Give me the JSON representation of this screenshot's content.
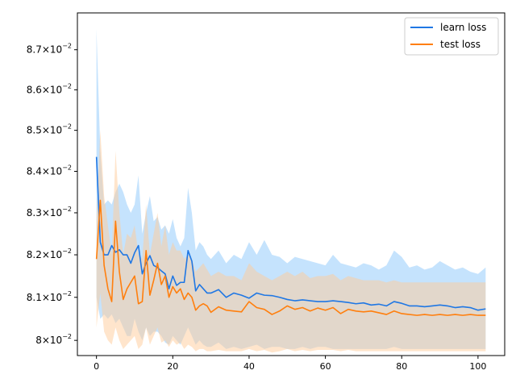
{
  "chart_data": {
    "type": "line",
    "title": "",
    "xlabel": "",
    "ylabel": "",
    "yscale": "log",
    "xlim": [
      -5,
      107
    ],
    "ylim": [
      0.07965,
      0.08793
    ],
    "x_ticks": [
      0,
      20,
      40,
      60,
      80,
      100
    ],
    "x_tick_labels": [
      "0",
      "20",
      "40",
      "60",
      "80",
      "100"
    ],
    "y_ticks": [
      0.08,
      0.081,
      0.082,
      0.083,
      0.084,
      0.085,
      0.086,
      0.087
    ],
    "y_tick_labels": [
      {
        "mantissa": "8",
        "sup": "−2"
      },
      {
        "mantissa": "8.1",
        "sup": "−2"
      },
      {
        "mantissa": "8.2",
        "sup": "−2"
      },
      {
        "mantissa": "8.3",
        "sup": "−2"
      },
      {
        "mantissa": "8.4",
        "sup": "−2"
      },
      {
        "mantissa": "8.5",
        "sup": "−2"
      },
      {
        "mantissa": "8.6",
        "sup": "−2"
      },
      {
        "mantissa": "8.7",
        "sup": "−2"
      }
    ],
    "grid": false,
    "legend_position": "top-right",
    "series": [
      {
        "name": "learn loss",
        "color": "#1f77e4",
        "band_color": "#9fd0fb",
        "x": [
          0,
          1,
          2,
          3,
          4,
          5,
          6,
          7,
          8,
          9,
          10,
          11,
          12,
          13,
          14,
          15,
          16,
          17,
          18,
          19,
          20,
          21,
          22,
          23,
          24,
          25,
          26,
          27,
          28,
          29,
          30,
          32,
          34,
          36,
          38,
          40,
          42,
          44,
          46,
          48,
          50,
          52,
          54,
          56,
          58,
          60,
          62,
          64,
          66,
          68,
          70,
          72,
          74,
          76,
          78,
          80,
          82,
          84,
          86,
          88,
          90,
          92,
          94,
          96,
          98,
          100,
          102
        ],
        "values": [
          0.08435,
          0.0823,
          0.082,
          0.082,
          0.08222,
          0.08206,
          0.08212,
          0.082,
          0.082,
          0.0818,
          0.08205,
          0.08222,
          0.08155,
          0.0818,
          0.08198,
          0.08175,
          0.0817,
          0.08162,
          0.08155,
          0.0812,
          0.0815,
          0.08128,
          0.08135,
          0.08135,
          0.0821,
          0.08185,
          0.08115,
          0.0813,
          0.0812,
          0.0811,
          0.0811,
          0.08118,
          0.081,
          0.0811,
          0.08105,
          0.08098,
          0.0811,
          0.08105,
          0.08104,
          0.081,
          0.08095,
          0.08092,
          0.08094,
          0.08092,
          0.0809,
          0.0809,
          0.08092,
          0.0809,
          0.08088,
          0.08085,
          0.08087,
          0.08082,
          0.08084,
          0.0808,
          0.0809,
          0.08086,
          0.0808,
          0.0808,
          0.08078,
          0.0808,
          0.08082,
          0.0808,
          0.08076,
          0.08078,
          0.08076,
          0.0807,
          0.08073
        ],
        "upper": [
          0.08752,
          0.0845,
          0.0832,
          0.0833,
          0.0832,
          0.0835,
          0.0837,
          0.0835,
          0.0832,
          0.083,
          0.0832,
          0.0839,
          0.0825,
          0.083,
          0.0834,
          0.0828,
          0.0829,
          0.0826,
          0.0827,
          0.0825,
          0.08285,
          0.0824,
          0.0822,
          0.0824,
          0.0836,
          0.083,
          0.0821,
          0.0823,
          0.0822,
          0.082,
          0.0819,
          0.0821,
          0.0818,
          0.082,
          0.0819,
          0.0823,
          0.082,
          0.08235,
          0.082,
          0.08195,
          0.0818,
          0.08195,
          0.0819,
          0.08185,
          0.0818,
          0.08175,
          0.082,
          0.0818,
          0.08175,
          0.0817,
          0.0818,
          0.08175,
          0.08165,
          0.08175,
          0.0821,
          0.08195,
          0.0817,
          0.08175,
          0.08165,
          0.0817,
          0.08185,
          0.08175,
          0.08165,
          0.0817,
          0.0816,
          0.08155,
          0.0817
        ],
        "lower": [
          0.081,
          0.0805,
          0.0806,
          0.0805,
          0.0806,
          0.0804,
          0.0805,
          0.0803,
          0.0801,
          0.0801,
          0.0805,
          0.0802,
          0.08,
          0.0803,
          0.0801,
          0.0802,
          0.0802,
          0.0801,
          0.07995,
          0.0799,
          0.0801,
          0.08,
          0.0799,
          0.0801,
          0.0803,
          0.0801,
          0.0799,
          0.08,
          0.0799,
          0.07985,
          0.07985,
          0.07995,
          0.0798,
          0.07985,
          0.0798,
          0.07985,
          0.0799,
          0.0798,
          0.07985,
          0.07985,
          0.0798,
          0.0798,
          0.07985,
          0.0798,
          0.07985,
          0.07985,
          0.0798,
          0.0798,
          0.0798,
          0.0798,
          0.0798,
          0.0798,
          0.0798,
          0.0798,
          0.07985,
          0.0798,
          0.0798,
          0.0798,
          0.0798,
          0.0798,
          0.0798,
          0.0798,
          0.0798,
          0.0798,
          0.0798,
          0.0798,
          0.0798
        ]
      },
      {
        "name": "test loss",
        "color": "#ff7f0e",
        "band_color": "#ffcc99",
        "x": [
          0,
          1,
          2,
          3,
          4,
          5,
          6,
          7,
          8,
          9,
          10,
          11,
          12,
          13,
          14,
          15,
          16,
          17,
          18,
          19,
          20,
          21,
          22,
          23,
          24,
          25,
          26,
          27,
          28,
          29,
          30,
          32,
          34,
          36,
          38,
          40,
          42,
          44,
          46,
          48,
          50,
          52,
          54,
          56,
          58,
          60,
          62,
          64,
          66,
          68,
          70,
          72,
          74,
          76,
          78,
          80,
          82,
          84,
          86,
          88,
          90,
          92,
          94,
          96,
          98,
          100,
          102
        ],
        "values": [
          0.0819,
          0.0833,
          0.08175,
          0.0812,
          0.0809,
          0.0828,
          0.0816,
          0.08095,
          0.0812,
          0.08135,
          0.0815,
          0.08085,
          0.0809,
          0.0821,
          0.08105,
          0.0814,
          0.0818,
          0.0813,
          0.0815,
          0.081,
          0.08125,
          0.0811,
          0.0812,
          0.08095,
          0.0811,
          0.081,
          0.0807,
          0.0808,
          0.08085,
          0.0808,
          0.08065,
          0.08078,
          0.0807,
          0.08068,
          0.08066,
          0.0809,
          0.08076,
          0.08072,
          0.0806,
          0.08068,
          0.0808,
          0.08072,
          0.08076,
          0.08068,
          0.08075,
          0.0807,
          0.08076,
          0.08062,
          0.08072,
          0.08068,
          0.08066,
          0.08068,
          0.08064,
          0.0806,
          0.08068,
          0.08062,
          0.0806,
          0.08058,
          0.0806,
          0.08058,
          0.0806,
          0.08058,
          0.0806,
          0.08058,
          0.0806,
          0.08058,
          0.08058
        ],
        "upper": [
          0.0828,
          0.085,
          0.0834,
          0.0827,
          0.082,
          0.0845,
          0.083,
          0.082,
          0.0825,
          0.0824,
          0.0827,
          0.082,
          0.0819,
          0.0832,
          0.082,
          0.0825,
          0.083,
          0.0822,
          0.0827,
          0.082,
          0.0823,
          0.0821,
          0.0821,
          0.0819,
          0.082,
          0.0819,
          0.0816,
          0.0817,
          0.0818,
          0.08165,
          0.0815,
          0.0816,
          0.0815,
          0.0815,
          0.0814,
          0.0818,
          0.0816,
          0.0815,
          0.0814,
          0.0815,
          0.0816,
          0.0815,
          0.0816,
          0.08145,
          0.0815,
          0.0815,
          0.08155,
          0.0814,
          0.0815,
          0.08145,
          0.0814,
          0.0814,
          0.0814,
          0.08135,
          0.0814,
          0.08135,
          0.08135,
          0.08135,
          0.08135,
          0.08135,
          0.08135,
          0.08135,
          0.08135,
          0.08135,
          0.08135,
          0.08135,
          0.08135
        ],
        "lower": [
          0.0803,
          0.0811,
          0.0802,
          0.08,
          0.0799,
          0.0803,
          0.08,
          0.0798,
          0.0799,
          0.08,
          0.0801,
          0.0798,
          0.0799,
          0.0803,
          0.0799,
          0.0801,
          0.0803,
          0.07995,
          0.08,
          0.07985,
          0.08,
          0.0799,
          0.07995,
          0.0798,
          0.0799,
          0.07985,
          0.07975,
          0.0798,
          0.0798,
          0.07975,
          0.07975,
          0.07978,
          0.07975,
          0.07975,
          0.07975,
          0.0798,
          0.07975,
          0.07978,
          0.07972,
          0.07975,
          0.0798,
          0.07975,
          0.07978,
          0.07975,
          0.07978,
          0.07978,
          0.07978,
          0.07975,
          0.07978,
          0.07975,
          0.07975,
          0.07975,
          0.07975,
          0.07975,
          0.07975,
          0.07975,
          0.07975,
          0.07975,
          0.07975,
          0.07975,
          0.07975,
          0.07975,
          0.07975,
          0.07975,
          0.07975,
          0.07975,
          0.07975
        ]
      }
    ]
  }
}
